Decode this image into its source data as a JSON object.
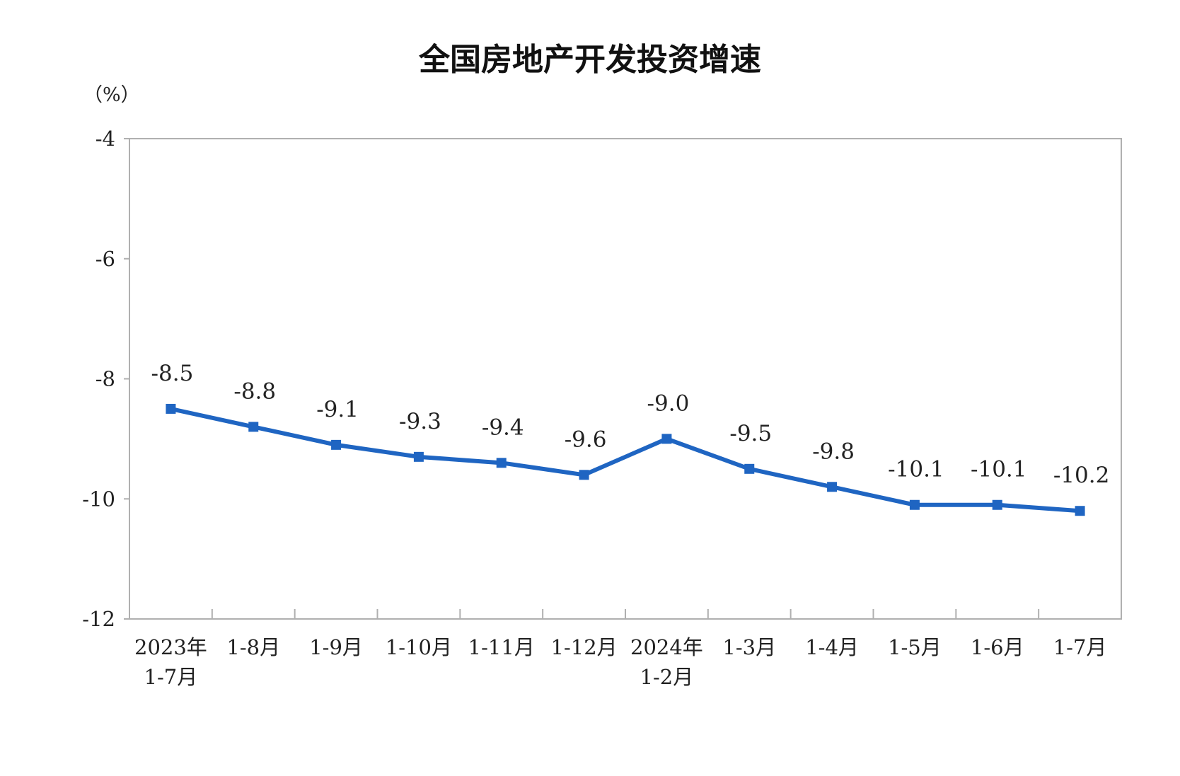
{
  "chart_data": {
    "type": "line",
    "title": "全国房地产开发投资增速",
    "unit": "（%）",
    "categories": [
      [
        "2023年",
        "1-7月"
      ],
      [
        "1-8月"
      ],
      [
        "1-9月"
      ],
      [
        "1-10月"
      ],
      [
        "1-11月"
      ],
      [
        "1-12月"
      ],
      [
        "2024年",
        "1-2月"
      ],
      [
        "1-3月"
      ],
      [
        "1-4月"
      ],
      [
        "1-5月"
      ],
      [
        "1-6月"
      ],
      [
        "1-7月"
      ]
    ],
    "values": [
      -8.5,
      -8.8,
      -9.1,
      -9.3,
      -9.4,
      -9.6,
      -9.0,
      -9.5,
      -9.8,
      -10.1,
      -10.1,
      -10.2
    ],
    "data_labels": [
      "-8.5",
      "-8.8",
      "-9.1",
      "-9.3",
      "-9.4",
      "-9.6",
      "-9.0",
      "-9.5",
      "-9.8",
      "-10.1",
      "-10.1",
      "-10.2"
    ],
    "ylim": [
      -12,
      -4
    ],
    "yticks": [
      -4,
      -6,
      -8,
      -10,
      -12
    ],
    "grid": false,
    "legend": "none",
    "colors": {
      "line": "#1f65c2",
      "axis": "#b0b0b0",
      "text": "#222222"
    }
  }
}
